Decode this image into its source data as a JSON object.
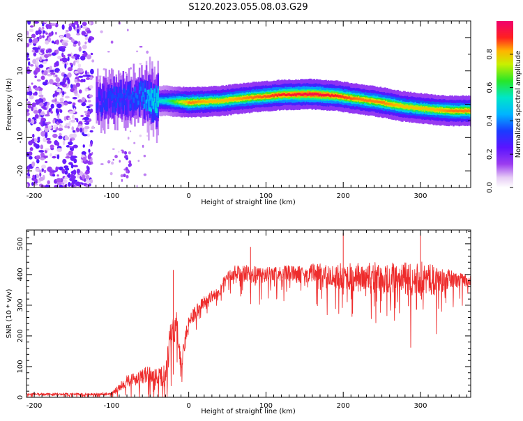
{
  "figure": {
    "title": "S120.2023.055.08.03.G29"
  },
  "colors": {
    "snr_line": "#ee2c2c",
    "background": "#ffffff"
  },
  "chart_data": [
    {
      "type": "heatmap",
      "name": "spectrogram",
      "title": "",
      "xlabel": "Height of straight line (km)",
      "ylabel": "Frequency (Hz)",
      "xlim": [
        -210,
        365
      ],
      "ylim": [
        -25,
        25
      ],
      "xticks": [
        -200,
        -100,
        0,
        100,
        200,
        300
      ],
      "yticks": [
        -20,
        -10,
        0,
        10,
        20
      ],
      "colorbar": {
        "label": "Normalized spectral amplitude",
        "range": [
          0,
          1
        ],
        "ticks": [
          0.0,
          0.2,
          0.4,
          0.6,
          0.8
        ],
        "colormap": "rainbow (white-purple-blue-cyan-green-yellow-red-magenta)"
      },
      "noise_region": {
        "x_range": [
          -210,
          -125
        ],
        "y_range": [
          -25,
          25
        ],
        "amplitude": "low (0.1-0.3)"
      },
      "secondary_feature": {
        "x_range": [
          -85,
          -75
        ],
        "y_range": [
          -22,
          -14
        ],
        "amplitude": "0.2"
      },
      "ridge": {
        "description": "peak frequency trace (high normalized amplitude along ridge)",
        "x": [
          -120,
          -100,
          -80,
          -60,
          -50,
          -30,
          0,
          40,
          80,
          120,
          160,
          190,
          220,
          250,
          280,
          310,
          340,
          365
        ],
        "y": [
          0.5,
          1.5,
          2.0,
          2.5,
          1.0,
          1.0,
          0.5,
          1.0,
          2.0,
          2.8,
          3.0,
          2.5,
          1.5,
          0.5,
          -0.8,
          -1.5,
          -2.0,
          -2.0
        ],
        "amplitude": [
          0.3,
          0.35,
          0.35,
          0.4,
          0.5,
          0.55,
          0.85,
          0.8,
          0.85,
          0.9,
          0.95,
          0.9,
          0.85,
          0.85,
          0.8,
          0.8,
          0.85,
          0.85
        ]
      }
    },
    {
      "type": "line",
      "name": "snr",
      "title": "",
      "xlabel": "Height of straight line (km)",
      "ylabel": "SNR (10 * v/v)",
      "xlim": [
        -210,
        365
      ],
      "ylim": [
        0,
        545
      ],
      "xticks": [
        -200,
        -100,
        0,
        100,
        200,
        300
      ],
      "yticks": [
        0,
        100,
        200,
        300,
        400,
        500
      ],
      "series": [
        {
          "color": "#ee2c2c",
          "x": [
            -210,
            -180,
            -150,
            -120,
            -100,
            -90,
            -80,
            -70,
            -60,
            -50,
            -40,
            -30,
            -25,
            -20,
            -15,
            -10,
            -5,
            0,
            10,
            20,
            30,
            40,
            45,
            50,
            60,
            70,
            80,
            90,
            100,
            120,
            140,
            160,
            180,
            200,
            220,
            240,
            260,
            280,
            300,
            320,
            340,
            365
          ],
          "y": [
            10,
            10,
            10,
            10,
            12,
            30,
            55,
            60,
            70,
            75,
            60,
            80,
            180,
            220,
            230,
            90,
            180,
            250,
            280,
            310,
            330,
            340,
            380,
            395,
            400,
            400,
            400,
            398,
            400,
            405,
            400,
            405,
            400,
            395,
            390,
            390,
            385,
            385,
            390,
            380,
            385,
            380
          ],
          "noise_amplitude": [
            8,
            8,
            8,
            8,
            10,
            25,
            40,
            45,
            50,
            55,
            60,
            70,
            90,
            110,
            100,
            70,
            60,
            50,
            45,
            40,
            35,
            30,
            25,
            25,
            60,
            60,
            60,
            50,
            50,
            50,
            55,
            60,
            70,
            85,
            95,
            100,
            105,
            110,
            110,
            95,
            60,
            40
          ],
          "peaks": [
            [
              -20,
              415
            ],
            [
              80,
              490
            ],
            [
              300,
              545
            ],
            [
              200,
              535
            ]
          ]
        }
      ]
    }
  ]
}
